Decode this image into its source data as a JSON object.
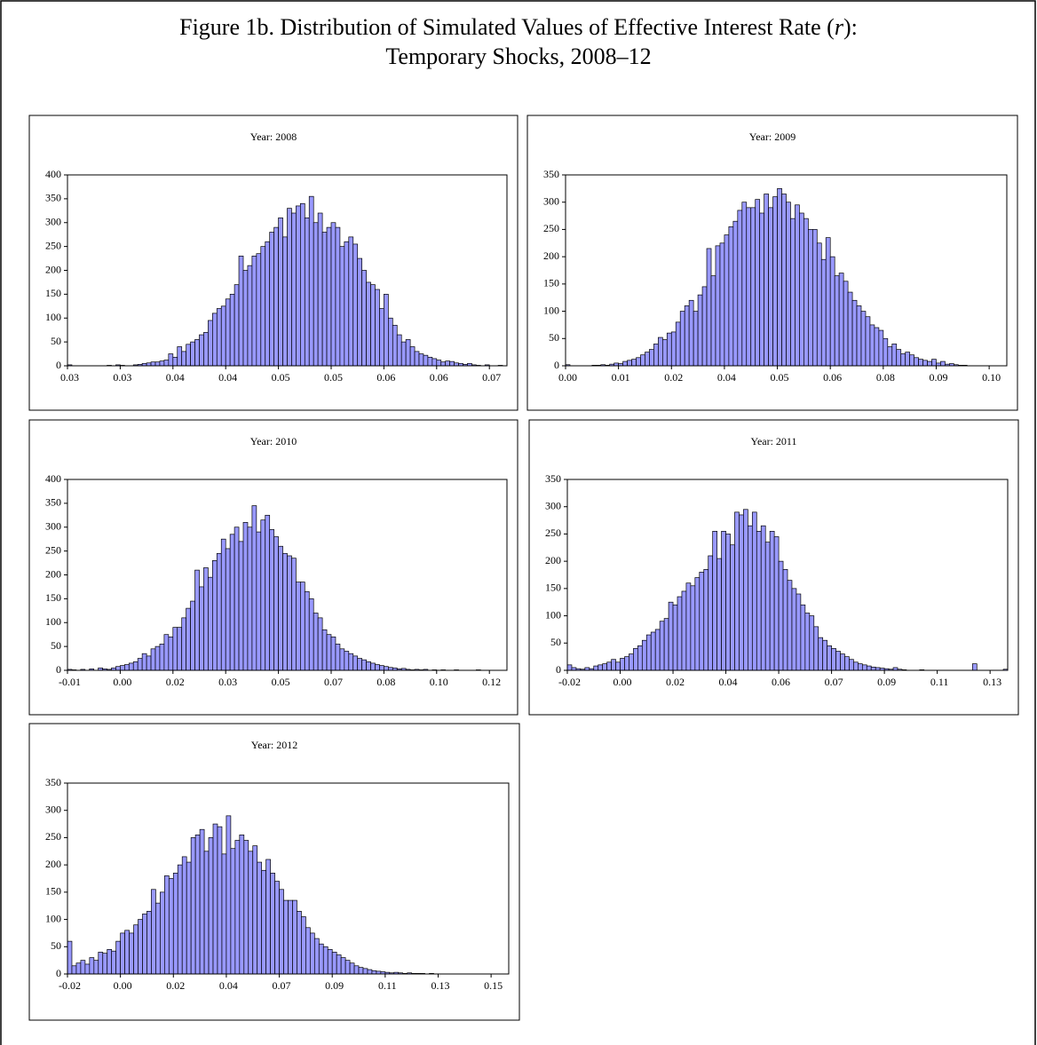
{
  "figure_title": [
    "Figure 1b. Distribution of Simulated Values of Effective Interest Rate (",
    "r",
    "):",
    "Temporary Shocks, 2008–12"
  ],
  "chart_data": [
    {
      "type": "bar",
      "title": "Year: 2008",
      "color": "#9999ff",
      "grid": false,
      "ylim": [
        0,
        400
      ],
      "yticks": [
        0,
        50,
        100,
        150,
        200,
        250,
        300,
        350,
        400
      ],
      "categories": [
        "0.03",
        null,
        null,
        null,
        null,
        null,
        null,
        null,
        null,
        null,
        null,
        null,
        "0.03",
        null,
        null,
        null,
        null,
        null,
        null,
        null,
        null,
        null,
        null,
        null,
        "0.04",
        null,
        null,
        null,
        null,
        null,
        null,
        null,
        null,
        null,
        null,
        null,
        "0.04",
        null,
        null,
        null,
        null,
        null,
        null,
        null,
        null,
        null,
        null,
        null,
        "0.05",
        null,
        null,
        null,
        null,
        null,
        null,
        null,
        null,
        null,
        null,
        null,
        "0.05",
        null,
        null,
        null,
        null,
        null,
        null,
        null,
        null,
        null,
        null,
        null,
        "0.06",
        null,
        null,
        null,
        null,
        null,
        null,
        null,
        null,
        null,
        null,
        null,
        "0.06",
        null,
        null,
        null,
        null,
        null,
        null,
        null,
        null,
        null,
        null,
        null,
        "0.07",
        null,
        null,
        null
      ],
      "values": [
        2,
        0,
        0,
        0,
        0,
        0,
        0,
        0,
        0,
        1,
        0,
        2,
        1,
        0,
        0,
        2,
        3,
        5,
        6,
        8,
        8,
        10,
        12,
        25,
        18,
        40,
        30,
        45,
        50,
        55,
        65,
        70,
        95,
        110,
        120,
        125,
        140,
        150,
        170,
        230,
        200,
        210,
        230,
        235,
        250,
        260,
        280,
        290,
        310,
        270,
        330,
        320,
        335,
        340,
        310,
        355,
        300,
        320,
        280,
        290,
        300,
        290,
        250,
        260,
        270,
        255,
        225,
        200,
        175,
        170,
        160,
        120,
        150,
        100,
        85,
        65,
        50,
        55,
        40,
        30,
        25,
        22,
        18,
        15,
        12,
        8,
        10,
        9,
        6,
        5,
        3,
        5,
        2,
        1,
        0,
        2,
        0,
        0,
        1,
        0
      ]
    },
    {
      "type": "bar",
      "title": "Year: 2009",
      "color": "#9999ff",
      "grid": false,
      "ylim": [
        0,
        350
      ],
      "yticks": [
        0,
        50,
        100,
        150,
        200,
        250,
        300,
        350
      ],
      "categories": [
        "0.00",
        null,
        null,
        null,
        null,
        null,
        null,
        null,
        null,
        null,
        null,
        null,
        "0.01",
        null,
        null,
        null,
        null,
        null,
        null,
        null,
        null,
        null,
        null,
        null,
        "0.02",
        null,
        null,
        null,
        null,
        null,
        null,
        null,
        null,
        null,
        null,
        null,
        "0.04",
        null,
        null,
        null,
        null,
        null,
        null,
        null,
        null,
        null,
        null,
        null,
        "0.05",
        null,
        null,
        null,
        null,
        null,
        null,
        null,
        null,
        null,
        null,
        null,
        "0.06",
        null,
        null,
        null,
        null,
        null,
        null,
        null,
        null,
        null,
        null,
        null,
        "0.08",
        null,
        null,
        null,
        null,
        null,
        null,
        null,
        null,
        null,
        null,
        null,
        "0.09",
        null,
        null,
        null,
        null,
        null,
        null,
        null,
        null,
        null,
        null,
        null,
        "0.10",
        null,
        null,
        null
      ],
      "values": [
        2,
        0,
        0,
        0,
        0,
        0,
        1,
        1,
        2,
        1,
        3,
        5,
        4,
        8,
        10,
        12,
        15,
        20,
        25,
        30,
        40,
        52,
        48,
        60,
        62,
        80,
        100,
        110,
        120,
        100,
        130,
        145,
        215,
        165,
        220,
        225,
        240,
        255,
        265,
        285,
        300,
        290,
        290,
        305,
        280,
        315,
        290,
        310,
        325,
        315,
        300,
        270,
        295,
        280,
        270,
        250,
        250,
        225,
        195,
        235,
        200,
        165,
        170,
        155,
        135,
        120,
        110,
        100,
        90,
        75,
        70,
        65,
        50,
        35,
        40,
        30,
        22,
        25,
        20,
        15,
        12,
        10,
        8,
        12,
        5,
        8,
        3,
        4,
        2,
        1,
        1,
        0,
        0,
        0,
        0,
        0,
        0,
        0,
        0,
        0
      ]
    },
    {
      "type": "bar",
      "title": "Year: 2010",
      "color": "#9999ff",
      "grid": false,
      "ylim": [
        0,
        400
      ],
      "yticks": [
        0,
        50,
        100,
        150,
        200,
        250,
        300,
        350,
        400
      ],
      "categories": [
        "-0.01",
        null,
        null,
        null,
        null,
        null,
        null,
        null,
        null,
        null,
        null,
        null,
        "0.00",
        null,
        null,
        null,
        null,
        null,
        null,
        null,
        null,
        null,
        null,
        null,
        "0.02",
        null,
        null,
        null,
        null,
        null,
        null,
        null,
        null,
        null,
        null,
        null,
        "0.03",
        null,
        null,
        null,
        null,
        null,
        null,
        null,
        null,
        null,
        null,
        null,
        "0.05",
        null,
        null,
        null,
        null,
        null,
        null,
        null,
        null,
        null,
        null,
        null,
        "0.07",
        null,
        null,
        null,
        null,
        null,
        null,
        null,
        null,
        null,
        null,
        null,
        "0.08",
        null,
        null,
        null,
        null,
        null,
        null,
        null,
        null,
        null,
        null,
        null,
        "0.10",
        null,
        null,
        null,
        null,
        null,
        null,
        null,
        null,
        null,
        null,
        null,
        "0.12",
        null,
        null,
        null
      ],
      "values": [
        2,
        1,
        0,
        2,
        0,
        3,
        0,
        5,
        3,
        2,
        5,
        8,
        10,
        12,
        15,
        18,
        25,
        35,
        30,
        45,
        50,
        55,
        75,
        70,
        90,
        90,
        110,
        130,
        145,
        210,
        175,
        215,
        195,
        230,
        245,
        275,
        255,
        285,
        300,
        270,
        310,
        300,
        345,
        290,
        315,
        325,
        295,
        280,
        260,
        245,
        240,
        235,
        185,
        185,
        165,
        150,
        120,
        110,
        85,
        75,
        70,
        55,
        45,
        40,
        35,
        30,
        25,
        22,
        18,
        15,
        12,
        10,
        8,
        6,
        5,
        3,
        4,
        2,
        1,
        2,
        1,
        2,
        0,
        1,
        0,
        1,
        0,
        0,
        1,
        0,
        0,
        0,
        0,
        1,
        0,
        0,
        0,
        0,
        0,
        0
      ]
    },
    {
      "type": "bar",
      "title": "Year: 2011",
      "color": "#9999ff",
      "grid": false,
      "ylim": [
        0,
        350
      ],
      "yticks": [
        0,
        50,
        100,
        150,
        200,
        250,
        300,
        350
      ],
      "categories": [
        "-0.02",
        null,
        null,
        null,
        null,
        null,
        null,
        null,
        null,
        null,
        null,
        null,
        "0.00",
        null,
        null,
        null,
        null,
        null,
        null,
        null,
        null,
        null,
        null,
        null,
        "0.02",
        null,
        null,
        null,
        null,
        null,
        null,
        null,
        null,
        null,
        null,
        null,
        "0.04",
        null,
        null,
        null,
        null,
        null,
        null,
        null,
        null,
        null,
        null,
        null,
        "0.06",
        null,
        null,
        null,
        null,
        null,
        null,
        null,
        null,
        null,
        null,
        null,
        "0.07",
        null,
        null,
        null,
        null,
        null,
        null,
        null,
        null,
        null,
        null,
        null,
        "0.09",
        null,
        null,
        null,
        null,
        null,
        null,
        null,
        null,
        null,
        null,
        null,
        "0.11",
        null,
        null,
        null,
        null,
        null,
        null,
        null,
        null,
        null,
        null,
        null,
        "0.13",
        null,
        null,
        null
      ],
      "values": [
        10,
        5,
        3,
        2,
        5,
        3,
        8,
        10,
        12,
        15,
        20,
        15,
        22,
        25,
        30,
        40,
        45,
        55,
        65,
        70,
        75,
        90,
        95,
        125,
        120,
        135,
        145,
        160,
        155,
        170,
        180,
        185,
        210,
        255,
        205,
        255,
        250,
        230,
        290,
        285,
        295,
        265,
        290,
        255,
        265,
        235,
        255,
        245,
        200,
        185,
        165,
        150,
        140,
        120,
        105,
        100,
        80,
        60,
        55,
        45,
        40,
        35,
        30,
        25,
        20,
        15,
        12,
        10,
        8,
        6,
        5,
        4,
        3,
        2,
        5,
        2,
        1,
        0,
        0,
        0,
        1,
        0,
        0,
        0,
        0,
        0,
        0,
        0,
        0,
        0,
        0,
        0,
        12,
        0,
        0,
        0,
        0,
        0,
        0,
        2
      ]
    },
    {
      "type": "bar",
      "title": "Year: 2012",
      "color": "#9999ff",
      "grid": false,
      "ylim": [
        0,
        350
      ],
      "yticks": [
        0,
        50,
        100,
        150,
        200,
        250,
        300,
        350
      ],
      "categories": [
        "-0.02",
        null,
        null,
        null,
        null,
        null,
        null,
        null,
        null,
        null,
        null,
        null,
        "0.00",
        null,
        null,
        null,
        null,
        null,
        null,
        null,
        null,
        null,
        null,
        null,
        "0.02",
        null,
        null,
        null,
        null,
        null,
        null,
        null,
        null,
        null,
        null,
        null,
        "0.04",
        null,
        null,
        null,
        null,
        null,
        null,
        null,
        null,
        null,
        null,
        null,
        "0.07",
        null,
        null,
        null,
        null,
        null,
        null,
        null,
        null,
        null,
        null,
        null,
        "0.09",
        null,
        null,
        null,
        null,
        null,
        null,
        null,
        null,
        null,
        null,
        null,
        "0.11",
        null,
        null,
        null,
        null,
        null,
        null,
        null,
        null,
        null,
        null,
        null,
        "0.13",
        null,
        null,
        null,
        null,
        null,
        null,
        null,
        null,
        null,
        null,
        null,
        "0.15",
        null,
        null,
        null
      ],
      "values": [
        60,
        15,
        20,
        25,
        18,
        30,
        25,
        40,
        38,
        45,
        42,
        60,
        75,
        80,
        75,
        90,
        100,
        110,
        115,
        155,
        130,
        150,
        180,
        175,
        185,
        200,
        215,
        205,
        250,
        255,
        265,
        225,
        250,
        275,
        270,
        220,
        290,
        230,
        245,
        255,
        245,
        225,
        235,
        205,
        190,
        210,
        185,
        170,
        155,
        135,
        135,
        135,
        115,
        105,
        85,
        75,
        65,
        55,
        50,
        45,
        40,
        35,
        30,
        25,
        20,
        15,
        12,
        10,
        8,
        6,
        5,
        4,
        3,
        2,
        3,
        2,
        1,
        2,
        1,
        1,
        1,
        0,
        1,
        0,
        0,
        0,
        0,
        0,
        0,
        0,
        0,
        0,
        0,
        0,
        0,
        0,
        0,
        0,
        0,
        0
      ]
    }
  ]
}
